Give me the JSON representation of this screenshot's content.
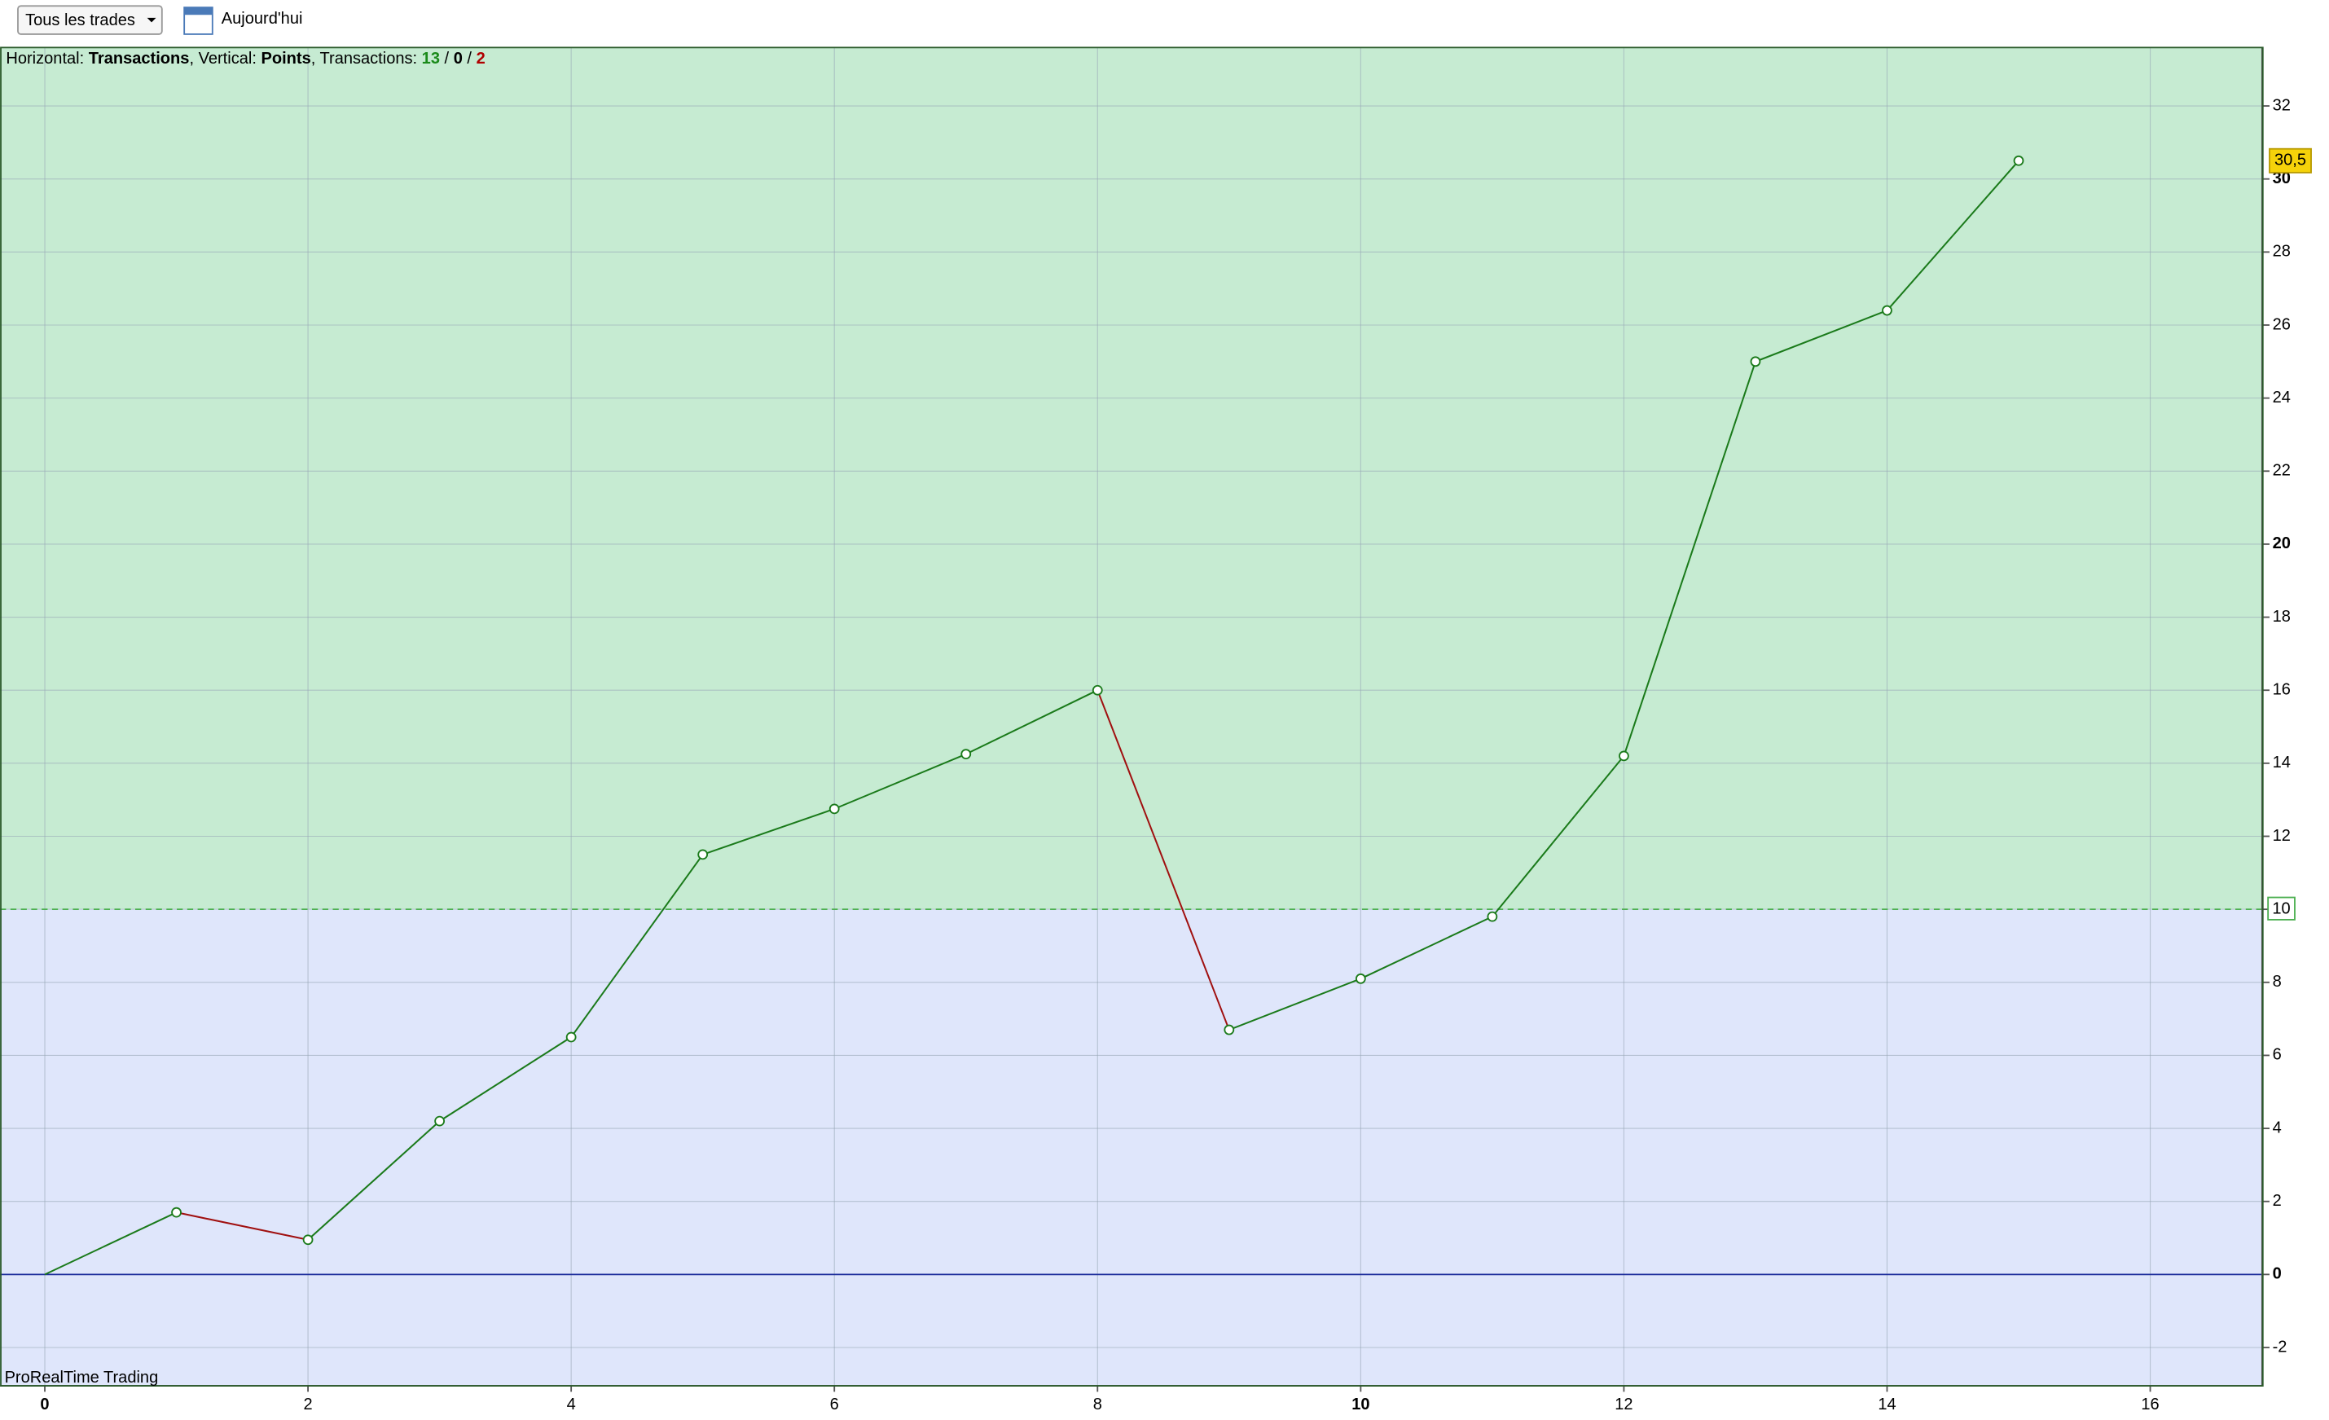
{
  "toolbar": {
    "filter": "Tous les trades",
    "date": "Aujourd'hui"
  },
  "info": [
    {
      "text": "Horizontal: "
    },
    {
      "text": "Transactions",
      "bold": true
    },
    {
      "text": ", Vertical: "
    },
    {
      "text": "Points",
      "bold": true
    },
    {
      "text": ", Transactions: "
    },
    {
      "text": 13,
      "bold": true,
      "color": "#1a8a1a"
    },
    {
      "text": " / "
    },
    {
      "text": 0,
      "bold": true
    },
    {
      "text": " / "
    },
    {
      "text": 2,
      "bold": true,
      "color": "#b00000"
    }
  ],
  "watermark": "ProRealTime Trading",
  "chart_data": {
    "type": "line",
    "x": [
      0,
      1,
      2,
      3,
      4,
      5,
      6,
      7,
      8,
      9,
      10,
      11,
      12,
      13,
      14,
      15
    ],
    "series": [
      {
        "values": [
          0,
          1.7,
          0.95,
          4.2,
          6.5,
          11.5,
          12.75,
          14.25,
          16,
          6.7,
          8.1,
          9.8,
          14.2,
          25,
          26.4,
          30.5
        ],
        "color": "#1a7a1a",
        "down_color": "#a01010"
      }
    ],
    "last_label": {
      "value": 30.5,
      "label": "30,5"
    },
    "threshold": {
      "value": 10,
      "label": "10"
    },
    "xlim": [
      -0.34,
      16.85
    ],
    "ylim": [
      -3.05,
      33.6
    ],
    "xticks": [
      0,
      2,
      4,
      6,
      8,
      10,
      12,
      14,
      16
    ],
    "yticks": [
      -2,
      0,
      2,
      4,
      6,
      8,
      10,
      12,
      14,
      16,
      18,
      20,
      22,
      24,
      26,
      28,
      30,
      32
    ],
    "grid": true,
    "above_color": "#c6ebd2",
    "below_color": "#dfe6fb"
  }
}
